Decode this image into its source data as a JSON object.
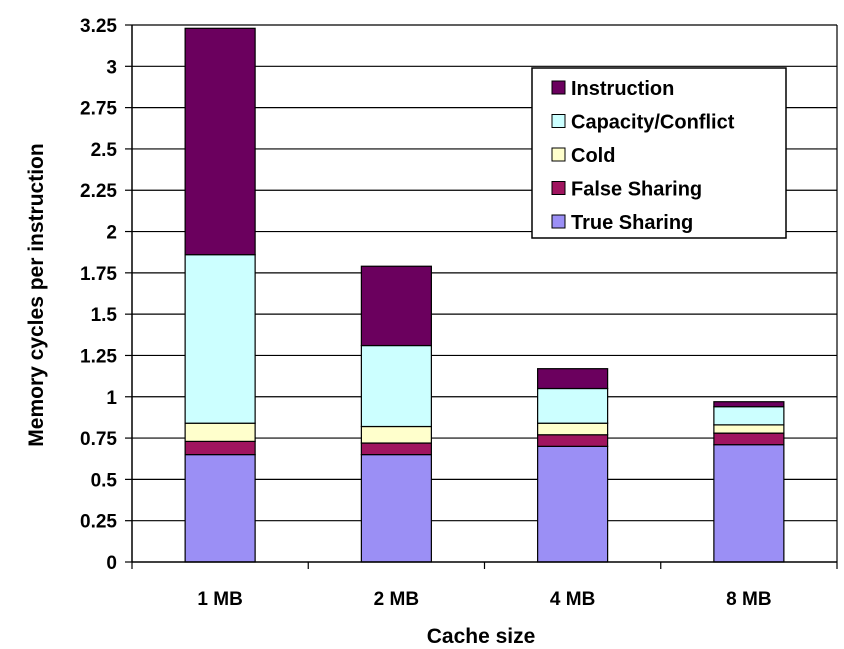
{
  "chart_data": {
    "type": "bar",
    "stacked": true,
    "title": "",
    "xlabel": "Cache size",
    "ylabel": "Memory cycles per instruction",
    "categories": [
      "1 MB",
      "2 MB",
      "4 MB",
      "8 MB"
    ],
    "ylim": [
      0,
      3.25
    ],
    "yticks": [
      "0",
      "0.25",
      "0.5",
      "0.75",
      "1",
      "1.25",
      "1.5",
      "1.75",
      "2",
      "2.25",
      "2.5",
      "2.75",
      "3",
      "3.25"
    ],
    "grid": true,
    "legend_position": "top-right",
    "series": [
      {
        "name": "True Sharing",
        "color": "#9b8ff5",
        "values": [
          0.65,
          0.65,
          0.7,
          0.71
        ]
      },
      {
        "name": "False Sharing",
        "color": "#a0155f",
        "values": [
          0.08,
          0.07,
          0.07,
          0.07
        ]
      },
      {
        "name": "Cold",
        "color": "#ffffcc",
        "values": [
          0.11,
          0.1,
          0.07,
          0.05
        ]
      },
      {
        "name": "Capacity/Conflict",
        "color": "#ccffff",
        "values": [
          1.02,
          0.49,
          0.21,
          0.11
        ]
      },
      {
        "name": "Instruction",
        "color": "#6b005e",
        "values": [
          1.37,
          0.48,
          0.12,
          0.03
        ]
      }
    ],
    "legend_order": [
      "Instruction",
      "Capacity/Conflict",
      "Cold",
      "False Sharing",
      "True Sharing"
    ]
  }
}
